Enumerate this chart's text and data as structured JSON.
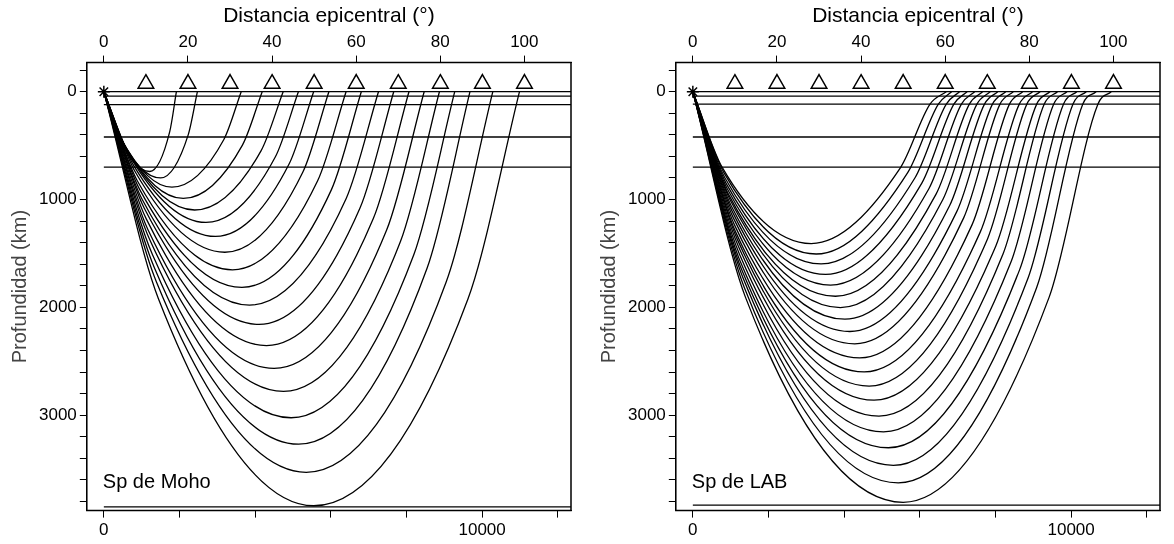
{
  "chart_data": [
    {
      "type": "line",
      "x2label": "Distancia epicentral (°)",
      "ylabel": "Profundidad (km)",
      "annotations": [
        "Sp de Moho"
      ],
      "legend": false,
      "xlim": [
        -450,
        12350
      ],
      "xticks": [
        {
          "value": 0,
          "label": "0"
        },
        {
          "value": 2000,
          "label": null
        },
        {
          "value": 4000,
          "label": null
        },
        {
          "value": 6000,
          "label": null
        },
        {
          "value": 8000,
          "label": null
        },
        10000,
        {
          "value": 12000,
          "label": null
        }
      ],
      "x2lim": [
        -4.05,
        111.1
      ],
      "x2ticks": [
        0,
        20,
        40,
        60,
        80,
        100
      ],
      "ylim": [
        3885,
        -270
      ],
      "yticks": [
        {
          "value": -200,
          "label": null
        },
        0,
        {
          "value": 200,
          "label": null
        },
        {
          "value": 400,
          "label": null
        },
        {
          "value": 600,
          "label": null
        },
        {
          "value": 800,
          "label": null
        },
        1000,
        {
          "value": 1200,
          "label": null
        },
        {
          "value": 1400,
          "label": null
        },
        {
          "value": 1600,
          "label": null
        },
        {
          "value": 1800,
          "label": null
        },
        2000,
        {
          "value": 2200,
          "label": null
        },
        {
          "value": 2400,
          "label": null
        },
        {
          "value": 2600,
          "label": null
        },
        {
          "value": 2800,
          "label": null
        },
        3000,
        {
          "value": 3200,
          "label": null
        },
        {
          "value": 3400,
          "label": null
        },
        {
          "value": 3600,
          "label": null
        },
        {
          "value": 3800,
          "label": null
        }
      ],
      "ref_lines": [
        {
          "axis": "y",
          "value": 0
        },
        {
          "axis": "y",
          "value": 40
        },
        {
          "axis": "y",
          "value": 120
        },
        {
          "axis": "y",
          "value": 420
        },
        {
          "axis": "y",
          "value": 700
        },
        {
          "axis": "y",
          "value": 3850
        }
      ],
      "series": [
        {
          "type": "line",
          "color": "#000000",
          "x": [
            0,
            315,
            1213,
            1742,
            1918
          ],
          "values": [
            0,
            370,
            740,
            370,
            0
          ]
        },
        {
          "type": "line",
          "color": "#000000",
          "x": [
            0,
            390,
            1500,
            2230,
            2473
          ],
          "values": [
            0,
            400,
            800,
            400,
            0
          ]
        },
        {
          "type": "line",
          "color": "#000000",
          "x": [
            0,
            468,
            1800,
            3173,
            3631
          ],
          "values": [
            0,
            443,
            885,
            443,
            0
          ]
        },
        {
          "type": "line",
          "color": "#000000",
          "x": [
            0,
            546,
            2100,
            3664,
            4186
          ],
          "values": [
            0,
            495,
            990,
            495,
            0
          ]
        },
        {
          "type": "line",
          "color": "#000000",
          "x": [
            0,
            624,
            2400,
            4155,
            4740
          ],
          "values": [
            0,
            549,
            1097,
            549,
            0
          ]
        },
        {
          "type": "line",
          "color": "#000000",
          "x": [
            0,
            702,
            2700,
            4532,
            5143
          ],
          "values": [
            0,
            606,
            1212,
            606,
            0
          ]
        },
        {
          "type": "line",
          "color": "#000000",
          "x": [
            0,
            767,
            2950,
            4897,
            5546
          ],
          "values": [
            0,
            671,
            1342,
            671,
            0
          ]
        },
        {
          "type": "line",
          "color": "#000000",
          "x": [
            0,
            832,
            3200,
            5262,
            5949
          ],
          "values": [
            0,
            745,
            1489,
            745,
            0
          ]
        },
        {
          "type": "line",
          "color": "#000000",
          "x": [
            0,
            884,
            3400,
            5652,
            6403
          ],
          "values": [
            0,
            826,
            1652,
            826,
            0
          ]
        },
        {
          "type": "line",
          "color": "#000000",
          "x": [
            0,
            949,
            3650,
            6017,
            6806
          ],
          "values": [
            0,
            908,
            1815,
            908,
            0
          ]
        },
        {
          "type": "line",
          "color": "#000000",
          "x": [
            0,
            1001,
            3850,
            6407,
            7260
          ],
          "values": [
            0,
            990,
            1979,
            990,
            0
          ]
        },
        {
          "type": "line",
          "color": "#000000",
          "x": [
            0,
            1066,
            4100,
            6772,
            7663
          ],
          "values": [
            0,
            1079,
            2158,
            1079,
            0
          ]
        },
        {
          "type": "line",
          "color": "#000000",
          "x": [
            0,
            1118,
            4300,
            7124,
            8066
          ],
          "values": [
            0,
            1177,
            2354,
            1177,
            0
          ]
        },
        {
          "type": "line",
          "color": "#000000",
          "x": [
            0,
            1170,
            4500,
            7476,
            8468
          ],
          "values": [
            0,
            1283,
            2566,
            1283,
            0
          ]
        },
        {
          "type": "line",
          "color": "#000000",
          "x": [
            0,
            1235,
            4750,
            7841,
            8871
          ],
          "values": [
            0,
            1390,
            2779,
            1390,
            0
          ]
        },
        {
          "type": "line",
          "color": "#000000",
          "x": [
            0,
            1287,
            4950,
            8194,
            9276
          ],
          "values": [
            0,
            1512,
            3024,
            1512,
            0
          ]
        },
        {
          "type": "line",
          "color": "#000000",
          "x": [
            0,
            1339,
            5150,
            8547,
            9679
          ],
          "values": [
            0,
            1635,
            3269,
            1635,
            0
          ]
        },
        {
          "type": "line",
          "color": "#000000",
          "x": [
            0,
            1391,
            5350,
            9050,
            10283
          ],
          "values": [
            0,
            1765,
            3530,
            1765,
            0
          ]
        },
        {
          "type": "line",
          "color": "#000000",
          "x": [
            0,
            1443,
            5550,
            9628,
            10988
          ],
          "values": [
            0,
            1920,
            3840,
            1920,
            0
          ]
        },
        {
          "type": "scatter",
          "marker": "triangle",
          "color": "#000000",
          "x": [
            1112,
            2224,
            3336,
            4448,
            5560,
            6672,
            7784,
            8896,
            10008,
            11120
          ],
          "values": [
            -75,
            -75,
            -75,
            -75,
            -75,
            -75,
            -75,
            -75,
            -75,
            -75
          ]
        },
        {
          "type": "scatter",
          "marker": "cross",
          "color": "#000000",
          "x": [
            0
          ],
          "values": [
            0
          ]
        }
      ]
    },
    {
      "type": "line",
      "x2label": "Distancia epicentral (°)",
      "ylabel": "Profundidad (km)",
      "annotations": [
        "Sp de LAB"
      ],
      "legend": false,
      "xlim": [
        -450,
        12350
      ],
      "xticks": [
        {
          "value": 0,
          "label": "0"
        },
        {
          "value": 2000,
          "label": null
        },
        {
          "value": 4000,
          "label": null
        },
        {
          "value": 6000,
          "label": null
        },
        {
          "value": 8000,
          "label": null
        },
        10000,
        {
          "value": 12000,
          "label": null
        }
      ],
      "x2lim": [
        -4.05,
        111.1
      ],
      "x2ticks": [
        0,
        20,
        40,
        60,
        80,
        100
      ],
      "ylim": [
        3885,
        -270
      ],
      "yticks": [
        {
          "value": -200,
          "label": null
        },
        0,
        {
          "value": 200,
          "label": null
        },
        {
          "value": 400,
          "label": null
        },
        {
          "value": 600,
          "label": null
        },
        {
          "value": 800,
          "label": null
        },
        1000,
        {
          "value": 1200,
          "label": null
        },
        {
          "value": 1400,
          "label": null
        },
        {
          "value": 1600,
          "label": null
        },
        {
          "value": 1800,
          "label": null
        },
        2000,
        {
          "value": 2200,
          "label": null
        },
        {
          "value": 2400,
          "label": null
        },
        {
          "value": 2600,
          "label": null
        },
        {
          "value": 2800,
          "label": null
        },
        3000,
        {
          "value": 3200,
          "label": null
        },
        {
          "value": 3400,
          "label": null
        },
        {
          "value": 3600,
          "label": null
        },
        {
          "value": 3800,
          "label": null
        }
      ],
      "ref_lines": [
        {
          "axis": "y",
          "value": 0
        },
        {
          "axis": "y",
          "value": 40
        },
        {
          "axis": "y",
          "value": 115
        },
        {
          "axis": "y",
          "value": 420
        },
        {
          "axis": "y",
          "value": 700
        },
        {
          "axis": "y",
          "value": 3835
        }
      ],
      "series": [
        {
          "type": "line",
          "color": "#000000",
          "x": [
            0,
            780,
            3130,
            5490,
            6270,
            6700
          ],
          "values": [
            0,
            704,
            1408,
            704,
            115,
            0
          ]
        },
        {
          "type": "line",
          "color": "#000000",
          "x": [
            0,
            820,
            3260,
            5680,
            6490,
            6840
          ],
          "values": [
            0,
            750,
            1505,
            750,
            115,
            0
          ]
        },
        {
          "type": "line",
          "color": "#000000",
          "x": [
            0,
            850,
            3390,
            5870,
            6700,
            7050
          ],
          "values": [
            0,
            800,
            1597,
            800,
            115,
            0
          ]
        },
        {
          "type": "line",
          "color": "#000000",
          "x": [
            0,
            880,
            3510,
            6050,
            6900,
            7250
          ],
          "values": [
            0,
            850,
            1695,
            850,
            115,
            0
          ]
        },
        {
          "type": "line",
          "color": "#000000",
          "x": [
            0,
            910,
            3640,
            6240,
            7100,
            7450
          ],
          "values": [
            0,
            900,
            1793,
            900,
            115,
            0
          ]
        },
        {
          "type": "line",
          "color": "#000000",
          "x": [
            0,
            940,
            3770,
            6430,
            7310,
            7660
          ],
          "values": [
            0,
            950,
            1897,
            950,
            115,
            0
          ]
        },
        {
          "type": "line",
          "color": "#000000",
          "x": [
            0,
            980,
            3900,
            6610,
            7510,
            7860
          ],
          "values": [
            0,
            1000,
            2002,
            1000,
            115,
            0
          ]
        },
        {
          "type": "line",
          "color": "#000000",
          "x": [
            0,
            1010,
            4020,
            6790,
            7710,
            8060
          ],
          "values": [
            0,
            1055,
            2110,
            1055,
            115,
            0
          ]
        },
        {
          "type": "line",
          "color": "#000000",
          "x": [
            0,
            1040,
            4150,
            6980,
            7920,
            8270
          ],
          "values": [
            0,
            1110,
            2224,
            1110,
            115,
            0
          ]
        },
        {
          "type": "line",
          "color": "#000000",
          "x": [
            0,
            1070,
            4280,
            7160,
            8120,
            8470
          ],
          "values": [
            0,
            1170,
            2338,
            1170,
            115,
            0
          ]
        },
        {
          "type": "line",
          "color": "#000000",
          "x": [
            0,
            1100,
            4410,
            7380,
            8370,
            8720
          ],
          "values": [
            0,
            1235,
            2469,
            1235,
            115,
            0
          ]
        },
        {
          "type": "line",
          "color": "#000000",
          "x": [
            0,
            1130,
            4530,
            7600,
            8630,
            8980
          ],
          "values": [
            0,
            1300,
            2599,
            1300,
            115,
            0
          ]
        },
        {
          "type": "line",
          "color": "#000000",
          "x": [
            0,
            1170,
            4660,
            7790,
            8830,
            9180
          ],
          "values": [
            0,
            1365,
            2730,
            1365,
            115,
            0
          ]
        },
        {
          "type": "line",
          "color": "#000000",
          "x": [
            0,
            1200,
            4790,
            8010,
            9090,
            9440
          ],
          "values": [
            0,
            1430,
            2861,
            1430,
            115,
            0
          ]
        },
        {
          "type": "line",
          "color": "#000000",
          "x": [
            0,
            1230,
            4920,
            8200,
            9290,
            9640
          ],
          "values": [
            0,
            1505,
            3008,
            1505,
            115,
            0
          ]
        },
        {
          "type": "line",
          "color": "#000000",
          "x": [
            0,
            1260,
            5040,
            8410,
            9540,
            9890
          ],
          "values": [
            0,
            1580,
            3155,
            1580,
            115,
            0
          ]
        },
        {
          "type": "line",
          "color": "#000000",
          "x": [
            0,
            1290,
            5170,
            8640,
            9800,
            10150
          ],
          "values": [
            0,
            1650,
            3302,
            1650,
            115,
            0
          ]
        },
        {
          "type": "line",
          "color": "#000000",
          "x": [
            0,
            1330,
            5300,
            8860,
            10050,
            10400
          ],
          "values": [
            0,
            1730,
            3465,
            1730,
            115,
            0
          ]
        },
        {
          "type": "line",
          "color": "#000000",
          "x": [
            0,
            1360,
            5430,
            9090,
            10310,
            10660
          ],
          "values": [
            0,
            1815,
            3628,
            1815,
            115,
            0
          ]
        },
        {
          "type": "line",
          "color": "#000000",
          "x": [
            0,
            1390,
            5560,
            9420,
            10710,
            11060
          ],
          "values": [
            0,
            1905,
            3808,
            1905,
            115,
            0
          ]
        },
        {
          "type": "scatter",
          "marker": "triangle",
          "color": "#000000",
          "x": [
            1112,
            2224,
            3336,
            4448,
            5560,
            6672,
            7784,
            8896,
            10008,
            11120
          ],
          "values": [
            -75,
            -75,
            -75,
            -75,
            -75,
            -75,
            -75,
            -75,
            -75,
            -75
          ]
        },
        {
          "type": "scatter",
          "marker": "cross",
          "color": "#000000",
          "x": [
            0
          ],
          "values": [
            0
          ]
        }
      ]
    }
  ]
}
